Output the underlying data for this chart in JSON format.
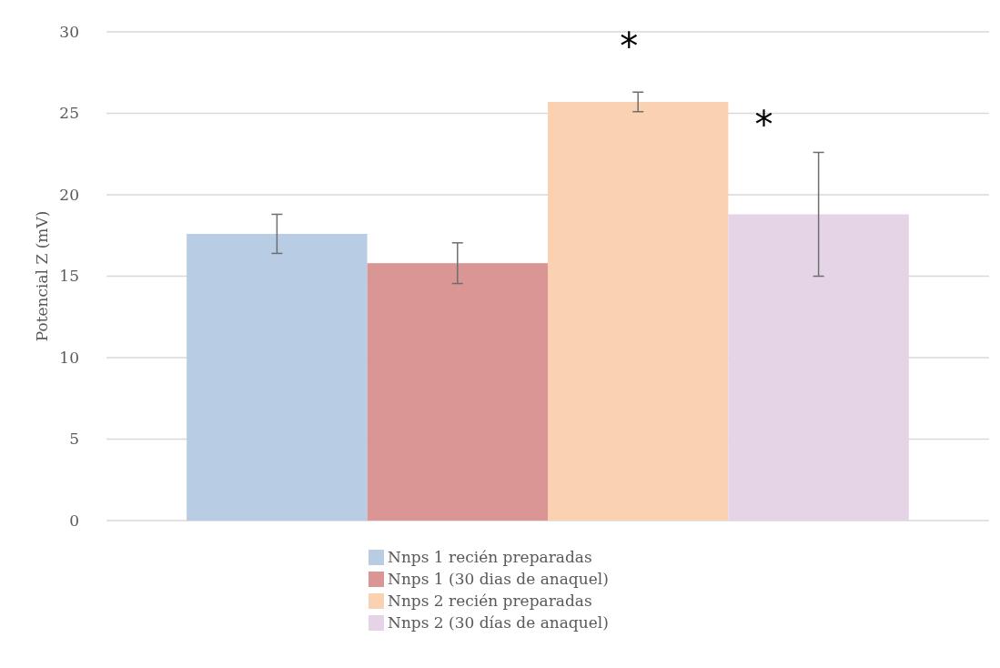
{
  "chart_data": {
    "type": "bar",
    "ylabel": "Potencial Z (mV)",
    "categories": [
      null
    ],
    "series": [
      {
        "name": "Nnps 1 recién preparadas",
        "color": "#b8cce4",
        "values": [
          17.6
        ],
        "errors": [
          1.2
        ]
      },
      {
        "name": "Nnps 1 (30 dias de anaquel)",
        "color": "#d99694",
        "values": [
          15.8
        ],
        "errors": [
          1.25
        ]
      },
      {
        "name": "Nnps 2 recién preparadas",
        "color": "#fad2b2",
        "values": [
          25.7
        ],
        "errors": [
          0.6
        ]
      },
      {
        "name": "Nnps 2 (30 días de anaquel)",
        "color": "#e5d4e6",
        "values": [
          18.8
        ],
        "errors": [
          3.8
        ]
      }
    ],
    "annotations": [
      "*",
      "*"
    ],
    "ylim": [
      0,
      30
    ],
    "yticks": [
      0,
      5,
      10,
      15,
      20,
      25,
      30
    ],
    "grid": "y",
    "legend": "bottom"
  }
}
